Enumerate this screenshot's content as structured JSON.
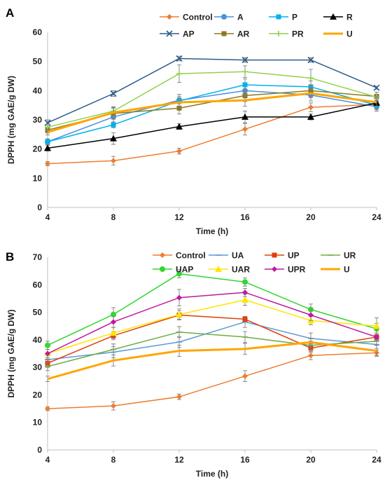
{
  "chart_data": [
    {
      "panel_label": "A",
      "type": "line",
      "xlabel": "Time (h)",
      "ylabel": "DPPH (mg GAE/g DW)",
      "x": [
        4,
        8,
        12,
        16,
        20,
        24
      ],
      "ylim": [
        0,
        60
      ],
      "yticks": [
        0,
        10,
        20,
        30,
        40,
        50,
        60
      ],
      "legend_position": "top-right",
      "grid": false,
      "series": [
        {
          "name": "Control",
          "color": "#ED7D31",
          "marker": "diamond",
          "values": [
            15.0,
            16.0,
            19.3,
            26.8,
            34.3,
            35.3
          ],
          "err": [
            0.7,
            1.5,
            1.0,
            2.0,
            1.5,
            1.0
          ]
        },
        {
          "name": "A",
          "color": "#4A90E2",
          "marker": "circle",
          "values": [
            22.5,
            31.0,
            36.7,
            40.0,
            38.5,
            34.5
          ],
          "err": [
            1.0,
            2.0,
            2.0,
            2.5,
            2.0,
            1.5
          ]
        },
        {
          "name": "P",
          "color": "#00B0F0",
          "marker": "square",
          "values": [
            22.5,
            28.3,
            36.5,
            42.0,
            41.3,
            35.0
          ],
          "err": [
            1.0,
            1.0,
            1.0,
            2.0,
            2.0,
            1.5
          ]
        },
        {
          "name": "R",
          "color": "#000000",
          "marker": "triangle",
          "values": [
            20.3,
            23.6,
            27.7,
            31.0,
            31.0,
            35.8
          ],
          "err": [
            1.0,
            2.0,
            1.0,
            2.0,
            1.0,
            1.0
          ]
        },
        {
          "name": "AP",
          "color": "#2E5C8A",
          "marker": "x",
          "values": [
            29.0,
            39.0,
            51.0,
            50.5,
            50.5,
            41.0
          ],
          "err": [
            1.0,
            1.0,
            0.8,
            0.8,
            0.8,
            0.5
          ]
        },
        {
          "name": "AR",
          "color": "#8C7A1E",
          "marker": "square",
          "values": [
            26.5,
            32.2,
            34.0,
            38.3,
            40.0,
            38.0
          ],
          "err": [
            1.0,
            2.0,
            2.0,
            2.0,
            2.0,
            1.5
          ]
        },
        {
          "name": "PR",
          "color": "#92D050",
          "marker": "plus",
          "values": [
            27.5,
            33.0,
            45.8,
            46.5,
            44.3,
            37.8
          ],
          "err": [
            1.0,
            1.0,
            3.0,
            2.0,
            3.0,
            1.0
          ]
        },
        {
          "name": "U",
          "color": "#FFA500",
          "marker": "none",
          "values": [
            25.8,
            32.5,
            36.0,
            36.7,
            39.1,
            36.0
          ],
          "err": [
            1.0,
            2.0,
            2.0,
            2.0,
            1.5,
            2.0
          ]
        }
      ]
    },
    {
      "panel_label": "B",
      "type": "line",
      "xlabel": "Time (h)",
      "ylabel": "DPPH (mg GAE/g DW)",
      "x": [
        4,
        8,
        12,
        16,
        20,
        24
      ],
      "ylim": [
        0,
        70
      ],
      "yticks": [
        0,
        10,
        20,
        30,
        40,
        50,
        60,
        70
      ],
      "legend_position": "top",
      "grid": false,
      "series": [
        {
          "name": "Control",
          "color": "#ED7D31",
          "marker": "diamond",
          "values": [
            15.0,
            16.0,
            19.3,
            26.8,
            34.3,
            35.3
          ],
          "err": [
            0.7,
            1.5,
            1.0,
            2.0,
            1.5,
            1.0
          ]
        },
        {
          "name": "UA",
          "color": "#5B9BD5",
          "marker": "dash",
          "values": [
            32.8,
            35.5,
            39.2,
            46.5,
            40.5,
            38.3
          ],
          "err": [
            1.5,
            2.0,
            2.0,
            2.0,
            2.0,
            1.5
          ]
        },
        {
          "name": "UP",
          "color": "#E0400A",
          "marker": "square",
          "values": [
            31.5,
            41.5,
            49.0,
            47.5,
            37.0,
            41.0
          ],
          "err": [
            1.5,
            1.5,
            1.5,
            1.0,
            1.5,
            1.0
          ]
        },
        {
          "name": "UR",
          "color": "#70AD47",
          "marker": "dash",
          "values": [
            30.3,
            36.5,
            42.8,
            41.0,
            38.0,
            39.5
          ],
          "err": [
            1.5,
            2.0,
            2.0,
            2.0,
            1.5,
            1.5
          ]
        },
        {
          "name": "UAP",
          "color": "#33D633",
          "marker": "circle",
          "values": [
            38.0,
            49.2,
            64.0,
            61.0,
            51.0,
            44.0
          ],
          "err": [
            1.5,
            2.5,
            1.5,
            1.5,
            2.0,
            2.0
          ]
        },
        {
          "name": "UAR",
          "color": "#FFE600",
          "marker": "triangle",
          "values": [
            35.0,
            42.5,
            49.2,
            54.5,
            47.0,
            45.0
          ],
          "err": [
            1.5,
            2.0,
            2.0,
            2.0,
            1.5,
            3.0
          ]
        },
        {
          "name": "UPR",
          "color": "#C0189F",
          "marker": "diamond",
          "values": [
            35.0,
            46.5,
            55.3,
            57.2,
            49.0,
            41.0
          ],
          "err": [
            1.5,
            2.0,
            3.0,
            1.5,
            2.0,
            1.5
          ]
        },
        {
          "name": "U",
          "color": "#FFA500",
          "marker": "none",
          "values": [
            25.8,
            32.5,
            36.0,
            36.7,
            39.1,
            36.0
          ],
          "err": [
            1.0,
            2.0,
            2.0,
            2.0,
            1.5,
            2.0
          ]
        }
      ]
    }
  ]
}
